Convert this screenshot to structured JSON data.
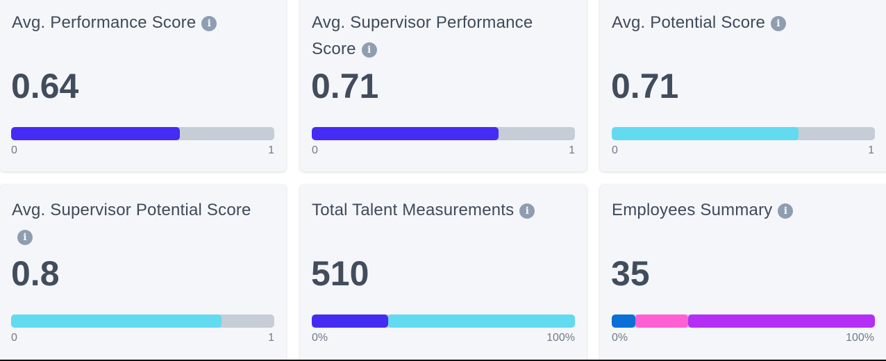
{
  "colors": {
    "indigo": "#452cf2",
    "cyan": "#62daf0",
    "track": "#c6cdd6",
    "blue": "#0a6fd6",
    "pink": "#ff5fd3",
    "purple": "#b42ef5"
  },
  "cards": [
    {
      "title": "Avg. Performance Score",
      "icon": "info-icon",
      "value": "0.64",
      "bar": [
        {
          "pct": 64,
          "color": "#452cf2"
        }
      ],
      "scale_min": "0",
      "scale_max": "1"
    },
    {
      "title": "Avg. Supervisor Performance Score",
      "icon": "info-icon",
      "value": "0.71",
      "bar": [
        {
          "pct": 71,
          "color": "#452cf2"
        }
      ],
      "scale_min": "0",
      "scale_max": "1"
    },
    {
      "title": "Avg. Potential Score",
      "icon": "info-icon",
      "value": "0.71",
      "bar": [
        {
          "pct": 71,
          "color": "#62daf0"
        }
      ],
      "scale_min": "0",
      "scale_max": "1"
    },
    {
      "title": "Avg. Supervisor Potential Score",
      "icon": "info-icon",
      "value": "0.8",
      "bar": [
        {
          "pct": 80,
          "color": "#62daf0"
        }
      ],
      "scale_min": "0",
      "scale_max": "1"
    },
    {
      "title": "Total Talent Measurements",
      "icon": "info-icon",
      "value": "510",
      "bar": [
        {
          "pct": 29,
          "color": "#452cf2"
        },
        {
          "pct": 71,
          "color": "#62daf0"
        }
      ],
      "scale_min": "0%",
      "scale_max": "100%"
    },
    {
      "title": "Employees Summary",
      "icon": "info-icon",
      "value": "35",
      "bar": [
        {
          "pct": 9,
          "color": "#0a6fd6"
        },
        {
          "pct": 20,
          "color": "#ff5fd3"
        },
        {
          "pct": 71,
          "color": "#b42ef5"
        }
      ],
      "scale_min": "0%",
      "scale_max": "100%"
    }
  ]
}
